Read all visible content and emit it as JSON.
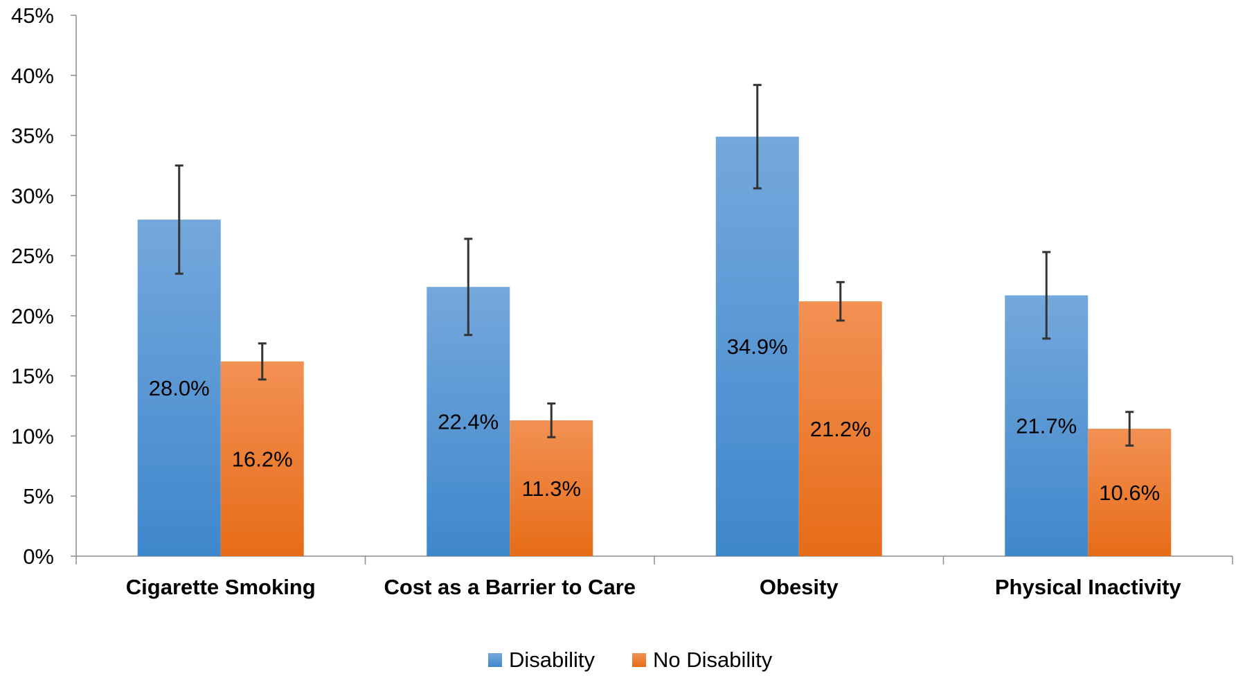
{
  "chart_data": {
    "type": "bar",
    "categories": [
      "Cigarette Smoking",
      "Cost as a Barrier to Care",
      "Obesity",
      "Physical Inactivity"
    ],
    "series": [
      {
        "name": "Disability",
        "values": [
          28.0,
          22.4,
          34.9,
          21.7
        ],
        "labels": [
          "28.0%",
          "22.4%",
          "34.9%",
          "21.7%"
        ],
        "error_low": [
          23.5,
          18.4,
          30.6,
          18.1
        ],
        "error_high": [
          32.5,
          26.4,
          39.2,
          25.3
        ],
        "color_top": "#74a8dc",
        "color_bottom": "#3f87cc"
      },
      {
        "name": "No Disability",
        "values": [
          16.2,
          11.3,
          21.2,
          10.6
        ],
        "labels": [
          "16.2%",
          "11.3%",
          "21.2%",
          "10.6%"
        ],
        "error_low": [
          14.7,
          9.9,
          19.6,
          9.2
        ],
        "error_high": [
          17.7,
          12.7,
          22.8,
          12.0
        ],
        "color_top": "#f29154",
        "color_bottom": "#e66c17"
      }
    ],
    "y_ticks": [
      "0%",
      "5%",
      "10%",
      "15%",
      "20%",
      "25%",
      "30%",
      "35%",
      "40%",
      "45%"
    ],
    "ylim": [
      0,
      45
    ],
    "y_unit": "%",
    "grid": false,
    "legend": {
      "position": "bottom-center",
      "entries": [
        "Disability",
        "No Disability"
      ]
    },
    "error_bar_color": "#333333",
    "axis_color": "#8c8c8c"
  }
}
